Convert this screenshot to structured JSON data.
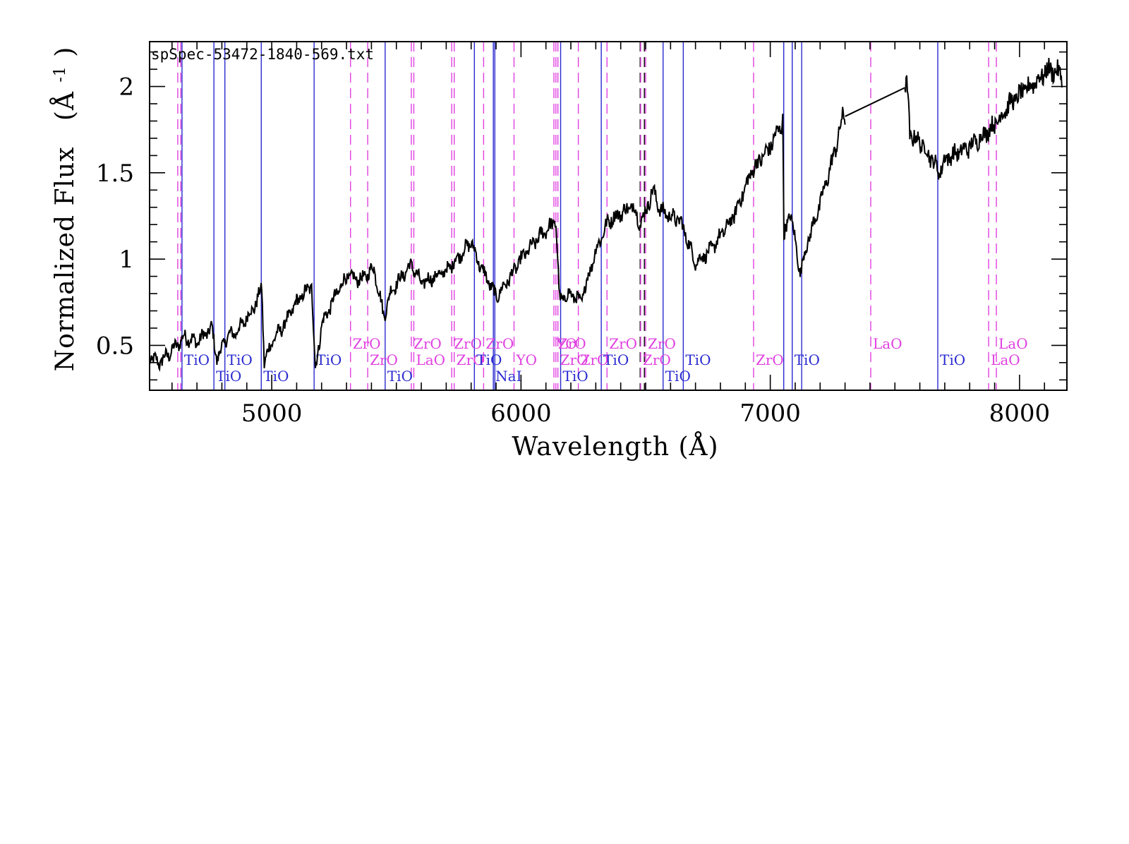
{
  "chart_data": {
    "type": "line",
    "title": "spSpec-53472-1840-569.txt",
    "xlabel": "Wavelength (Å)",
    "ylabel_main": "Normalized Flux",
    "ylabel_unit_base": "(Å",
    "ylabel_unit_exp": "-1",
    "ylabel_unit_close": ")",
    "xlim": [
      4510,
      8190
    ],
    "ylim": [
      0.24,
      2.26
    ],
    "x_ticks": [
      {
        "value": 5000,
        "label": "5000"
      },
      {
        "value": 6000,
        "label": "6000"
      },
      {
        "value": 7000,
        "label": "7000"
      },
      {
        "value": 8000,
        "label": "8000"
      }
    ],
    "y_ticks": [
      {
        "value": 0.5,
        "label": "0.5"
      },
      {
        "value": 1,
        "label": "1"
      },
      {
        "value": 1.5,
        "label": "1.5"
      },
      {
        "value": 2,
        "label": "2"
      }
    ],
    "x_minor_step": 100,
    "y_minor_step": 0.1,
    "colors": {
      "spectrum": "#000000",
      "tio": "#2a2ad0",
      "zro": "#e040e0",
      "black_dashed": "#000000"
    },
    "spectrum": {
      "name": "",
      "anchors": [
        [
          4510,
          0.43
        ],
        [
          4550,
          0.4
        ],
        [
          4600,
          0.47
        ],
        [
          4650,
          0.55
        ],
        [
          4700,
          0.52
        ],
        [
          4760,
          0.6
        ],
        [
          4780,
          0.42
        ],
        [
          4820,
          0.55
        ],
        [
          4860,
          0.58
        ],
        [
          4900,
          0.66
        ],
        [
          4940,
          0.75
        ],
        [
          4960,
          0.84
        ],
        [
          4970,
          0.4
        ],
        [
          5000,
          0.52
        ],
        [
          5050,
          0.62
        ],
        [
          5100,
          0.75
        ],
        [
          5160,
          0.85
        ],
        [
          5175,
          0.35
        ],
        [
          5200,
          0.62
        ],
        [
          5260,
          0.8
        ],
        [
          5300,
          0.9
        ],
        [
          5360,
          0.88
        ],
        [
          5410,
          0.95
        ],
        [
          5450,
          0.67
        ],
        [
          5480,
          0.82
        ],
        [
          5560,
          0.97
        ],
        [
          5600,
          0.86
        ],
        [
          5700,
          0.93
        ],
        [
          5800,
          1.1
        ],
        [
          5830,
          0.98
        ],
        [
          5880,
          0.84
        ],
        [
          5900,
          0.78
        ],
        [
          5950,
          0.88
        ],
        [
          6000,
          1.0
        ],
        [
          6080,
          1.14
        ],
        [
          6140,
          1.22
        ],
        [
          6155,
          0.76
        ],
        [
          6200,
          0.8
        ],
        [
          6240,
          0.75
        ],
        [
          6300,
          1.05
        ],
        [
          6350,
          1.22
        ],
        [
          6450,
          1.31
        ],
        [
          6480,
          1.2
        ],
        [
          6530,
          1.4
        ],
        [
          6560,
          1.28
        ],
        [
          6640,
          1.22
        ],
        [
          6700,
          0.98
        ],
        [
          6760,
          1.05
        ],
        [
          6850,
          1.24
        ],
        [
          6930,
          1.52
        ],
        [
          7000,
          1.65
        ],
        [
          7050,
          1.8
        ],
        [
          7055,
          1.12
        ],
        [
          7080,
          1.28
        ],
        [
          7120,
          0.92
        ],
        [
          7150,
          1.1
        ],
        [
          7200,
          1.32
        ],
        [
          7260,
          1.63
        ],
        [
          7290,
          1.82
        ],
        [
          7550,
          2.0
        ],
        [
          7560,
          1.72
        ],
        [
          7600,
          1.68
        ],
        [
          7640,
          1.6
        ],
        [
          7680,
          1.5
        ],
        [
          7700,
          1.58
        ],
        [
          7800,
          1.65
        ],
        [
          7900,
          1.78
        ],
        [
          7960,
          1.9
        ],
        [
          8040,
          2.0
        ],
        [
          8120,
          2.1
        ],
        [
          8170,
          2.07
        ]
      ],
      "gap": [
        7300,
        7540
      ]
    },
    "markers": [
      {
        "x": 4623,
        "color": "zro",
        "style": "dashed",
        "label": ""
      },
      {
        "x": 4635,
        "color": "zro",
        "style": "dashed",
        "label": ""
      },
      {
        "x": 4640,
        "color": "tio",
        "style": "solid",
        "label": "TiO",
        "row": 2
      },
      {
        "x": 4768,
        "color": "tio",
        "style": "solid",
        "label": "TiO",
        "row": 3
      },
      {
        "x": 4812,
        "color": "tio",
        "style": "solid",
        "label": "TiO",
        "row": 2
      },
      {
        "x": 4958,
        "color": "tio",
        "style": "solid",
        "label": "TiO",
        "row": 3
      },
      {
        "x": 5170,
        "color": "tio",
        "style": "solid",
        "label": "TiO",
        "row": 2
      },
      {
        "x": 5316,
        "color": "zro",
        "style": "dashed",
        "label": "ZrO",
        "row": 1
      },
      {
        "x": 5385,
        "color": "zro",
        "style": "dashed",
        "label": "ZrO",
        "row": 2
      },
      {
        "x": 5455,
        "color": "tio",
        "style": "solid",
        "label": "TiO",
        "row": 3
      },
      {
        "x": 5560,
        "color": "zro",
        "style": "dashed",
        "label": "ZrO",
        "row": 1
      },
      {
        "x": 5570,
        "color": "zro",
        "style": "dashed",
        "label": "LaO",
        "row": 2
      },
      {
        "x": 5722,
        "color": "zro",
        "style": "dashed",
        "label": "ZrO",
        "row": 1
      },
      {
        "x": 5732,
        "color": "zro",
        "style": "dashed",
        "label": "ZrO",
        "row": 2
      },
      {
        "x": 5813,
        "color": "tio",
        "style": "solid",
        "label": "TiO",
        "row": 2
      },
      {
        "x": 5850,
        "color": "zro",
        "style": "dashed",
        "label": "ZrO",
        "row": 1
      },
      {
        "x": 5889,
        "color": "tio",
        "style": "solid",
        "label": "NaI",
        "row": 3
      },
      {
        "x": 5895,
        "color": "tio",
        "style": "solid",
        "label": "",
        "row": 2
      },
      {
        "x": 5972,
        "color": "zro",
        "style": "dashed",
        "label": "YO",
        "row": 2
      },
      {
        "x": 6132,
        "color": "zro",
        "style": "dashed",
        "label": "YO",
        "row": 1
      },
      {
        "x": 6140,
        "color": "zro",
        "style": "dashed",
        "label": "ZrO",
        "row": 1
      },
      {
        "x": 6148,
        "color": "zro",
        "style": "dashed",
        "label": "ZrO",
        "row": 2
      },
      {
        "x": 6159,
        "color": "tio",
        "style": "solid",
        "label": "TiO",
        "row": 3
      },
      {
        "x": 6230,
        "color": "zro",
        "style": "dashed",
        "label": "ZrO",
        "row": 2
      },
      {
        "x": 6322,
        "color": "tio",
        "style": "solid",
        "label": "TiO",
        "row": 2
      },
      {
        "x": 6345,
        "color": "zro",
        "style": "dashed",
        "label": "ZrO",
        "row": 1
      },
      {
        "x": 6478,
        "color": "black_dashed",
        "style": "dashed",
        "label": ""
      },
      {
        "x": 6495,
        "color": "black_dashed",
        "style": "dashed",
        "label": ""
      },
      {
        "x": 6570,
        "color": "tio",
        "style": "solid",
        "label": "TiO",
        "row": 3
      },
      {
        "x": 6500,
        "color": "zro",
        "style": "dashed",
        "label": "ZrO",
        "row": 1
      },
      {
        "x": 6480,
        "color": "zro",
        "style": "dashed",
        "label": "ZrO",
        "row": 2
      },
      {
        "x": 6651,
        "color": "tio",
        "style": "solid",
        "label": "TiO",
        "row": 2
      },
      {
        "x": 6933,
        "color": "zro",
        "style": "dashed",
        "label": "ZrO",
        "row": 2
      },
      {
        "x": 7054,
        "color": "tio",
        "style": "solid",
        "label": "",
        "row": 3
      },
      {
        "x": 7088,
        "color": "tio",
        "style": "solid",
        "label": "TiO",
        "row": 2
      },
      {
        "x": 7126,
        "color": "tio",
        "style": "solid",
        "label": "",
        "row": 3
      },
      {
        "x": 7403,
        "color": "zro",
        "style": "dashed",
        "label": "LaO",
        "row": 1
      },
      {
        "x": 7672,
        "color": "tio",
        "style": "solid",
        "label": "TiO",
        "row": 2
      },
      {
        "x": 7876,
        "color": "zro",
        "style": "dashed",
        "label": "LaO",
        "row": 2
      },
      {
        "x": 7907,
        "color": "zro",
        "style": "dashed",
        "label": "LaO",
        "row": 1
      }
    ]
  }
}
